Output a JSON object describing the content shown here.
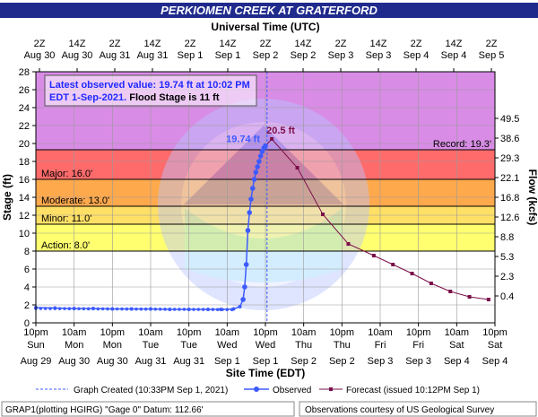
{
  "header": {
    "title": "PERKIOMEN CREEK AT GRATERFORD"
  },
  "top_axis": {
    "label": "Universal Time (UTC)",
    "ticks": [
      {
        "time": "2Z",
        "date": "Aug 30"
      },
      {
        "time": "14Z",
        "date": "Aug 30"
      },
      {
        "time": "2Z",
        "date": "Aug 31"
      },
      {
        "time": "14Z",
        "date": "Aug 31"
      },
      {
        "time": "2Z",
        "date": "Sep 1"
      },
      {
        "time": "14Z",
        "date": "Sep 1"
      },
      {
        "time": "2Z",
        "date": "Sep 2"
      },
      {
        "time": "14Z",
        "date": "Sep 2"
      },
      {
        "time": "2Z",
        "date": "Sep 3"
      },
      {
        "time": "14Z",
        "date": "Sep 3"
      },
      {
        "time": "2Z",
        "date": "Sep 4"
      },
      {
        "time": "14Z",
        "date": "Sep 4"
      },
      {
        "time": "2Z",
        "date": "Sep 5"
      }
    ]
  },
  "bottom_axis": {
    "label": "Site Time (EDT)",
    "ticks": [
      {
        "time": "10pm",
        "day": "Sun",
        "date": "Aug 29"
      },
      {
        "time": "10am",
        "day": "Mon",
        "date": "Aug 30"
      },
      {
        "time": "10pm",
        "day": "Mon",
        "date": "Aug 30"
      },
      {
        "time": "10am",
        "day": "Tue",
        "date": "Aug 31"
      },
      {
        "time": "10pm",
        "day": "Tue",
        "date": "Aug 31"
      },
      {
        "time": "10am",
        "day": "Wed",
        "date": "Sep 1"
      },
      {
        "time": "10pm",
        "day": "Wed",
        "date": "Sep 1"
      },
      {
        "time": "10am",
        "day": "Thu",
        "date": "Sep 2"
      },
      {
        "time": "10pm",
        "day": "Thu",
        "date": "Sep 2"
      },
      {
        "time": "10am",
        "day": "Fri",
        "date": "Sep 3"
      },
      {
        "time": "10pm",
        "day": "Fri",
        "date": "Sep 3"
      },
      {
        "time": "10am",
        "day": "Sat",
        "date": "Sep 4"
      },
      {
        "time": "10pm",
        "day": "Sat",
        "date": "Sep 4"
      }
    ]
  },
  "left_axis": {
    "label": "Stage (ft)"
  },
  "right_axis": {
    "label": "Flow (kcfs)"
  },
  "info_box": {
    "line1": "Latest observed value: 19.74 ft at 10:02 PM",
    "line2_date": "EDT 1-Sep-2021.",
    "line2_flood": " Flood Stage is 11 ft"
  },
  "legend": {
    "graph_created": "Graph Created (10:33PM Sep 1, 2021)",
    "observed": "Observed",
    "forecast": "Forecast (issued 10:12PM Sep 1)"
  },
  "footer": {
    "left": "GRAP1(plotting HGIRG) \"Gage 0\" Datum: 112.66'",
    "right": "Observations courtesy of US Geological Survey"
  },
  "colors": {
    "title_bar": "#1f2a8c",
    "record_band": "#d98ce6",
    "major_band": "#ff6b6b",
    "moderate_band": "#ffa94d",
    "minor_band": "#ffe066",
    "action_band": "#ffff70",
    "below_band": "#ffffff",
    "observed": "#3d5bff",
    "forecast": "#7a0f4a",
    "created_line": "#3d5bff"
  },
  "chart_data": {
    "type": "line",
    "x_unit": "hours after 10pm Sun Aug 29 (EDT)",
    "xlim": [
      0,
      144
    ],
    "ylim": [
      0,
      28
    ],
    "y_ticks": [
      0,
      2,
      4,
      6,
      8,
      10,
      12,
      14,
      16,
      18,
      20,
      22,
      24,
      26,
      28
    ],
    "flow_ticks": [
      {
        "stage": 3.0,
        "label": "0.4"
      },
      {
        "stage": 5.2,
        "label": "2.3"
      },
      {
        "stage": 7.4,
        "label": "5.3"
      },
      {
        "stage": 9.6,
        "label": "8.8"
      },
      {
        "stage": 11.8,
        "label": "12.6"
      },
      {
        "stage": 14.0,
        "label": "16.8"
      },
      {
        "stage": 16.2,
        "label": "22.1"
      },
      {
        "stage": 18.4,
        "label": "29.3"
      },
      {
        "stage": 20.6,
        "label": "38.6"
      },
      {
        "stage": 22.8,
        "label": "49.5"
      }
    ],
    "thresholds": [
      {
        "name": "Record",
        "label": "Record: 19.3'",
        "value": 19.3
      },
      {
        "name": "Major",
        "label": "Major: 16.0'",
        "value": 16.0
      },
      {
        "name": "Moderate",
        "label": "Moderate: 13.0'",
        "value": 13.0
      },
      {
        "name": "Minor",
        "label": "Minor: 11.0'",
        "value": 11.0
      },
      {
        "name": "Action",
        "label": "Action: 8.0'",
        "value": 8.0
      }
    ],
    "graph_created_x": 72.5,
    "series": [
      {
        "name": "Observed",
        "x": [
          0,
          6,
          12,
          18,
          24,
          30,
          36,
          42,
          48,
          54,
          58,
          62,
          64,
          65,
          65.5,
          66,
          66.5,
          67,
          67.5,
          68,
          68.5,
          69,
          69.5,
          70,
          70.5,
          71,
          71.5,
          72
        ],
        "y": [
          1.7,
          1.65,
          1.6,
          1.6,
          1.55,
          1.55,
          1.55,
          1.5,
          1.5,
          1.5,
          1.5,
          1.55,
          1.8,
          2.6,
          4.0,
          6.5,
          10.3,
          12.3,
          13.8,
          15.0,
          16.0,
          16.8,
          17.4,
          18.0,
          18.6,
          19.1,
          19.5,
          19.74
        ],
        "point_label": "19.74 ft"
      },
      {
        "name": "Forecast",
        "x": [
          72,
          74,
          82,
          90,
          98,
          106,
          112,
          118,
          124,
          130,
          136,
          142
        ],
        "y": [
          19.74,
          20.5,
          17.3,
          12.1,
          8.8,
          7.5,
          6.5,
          5.5,
          4.4,
          3.5,
          2.9,
          2.6
        ],
        "point_label": "20.5 ft"
      }
    ]
  }
}
